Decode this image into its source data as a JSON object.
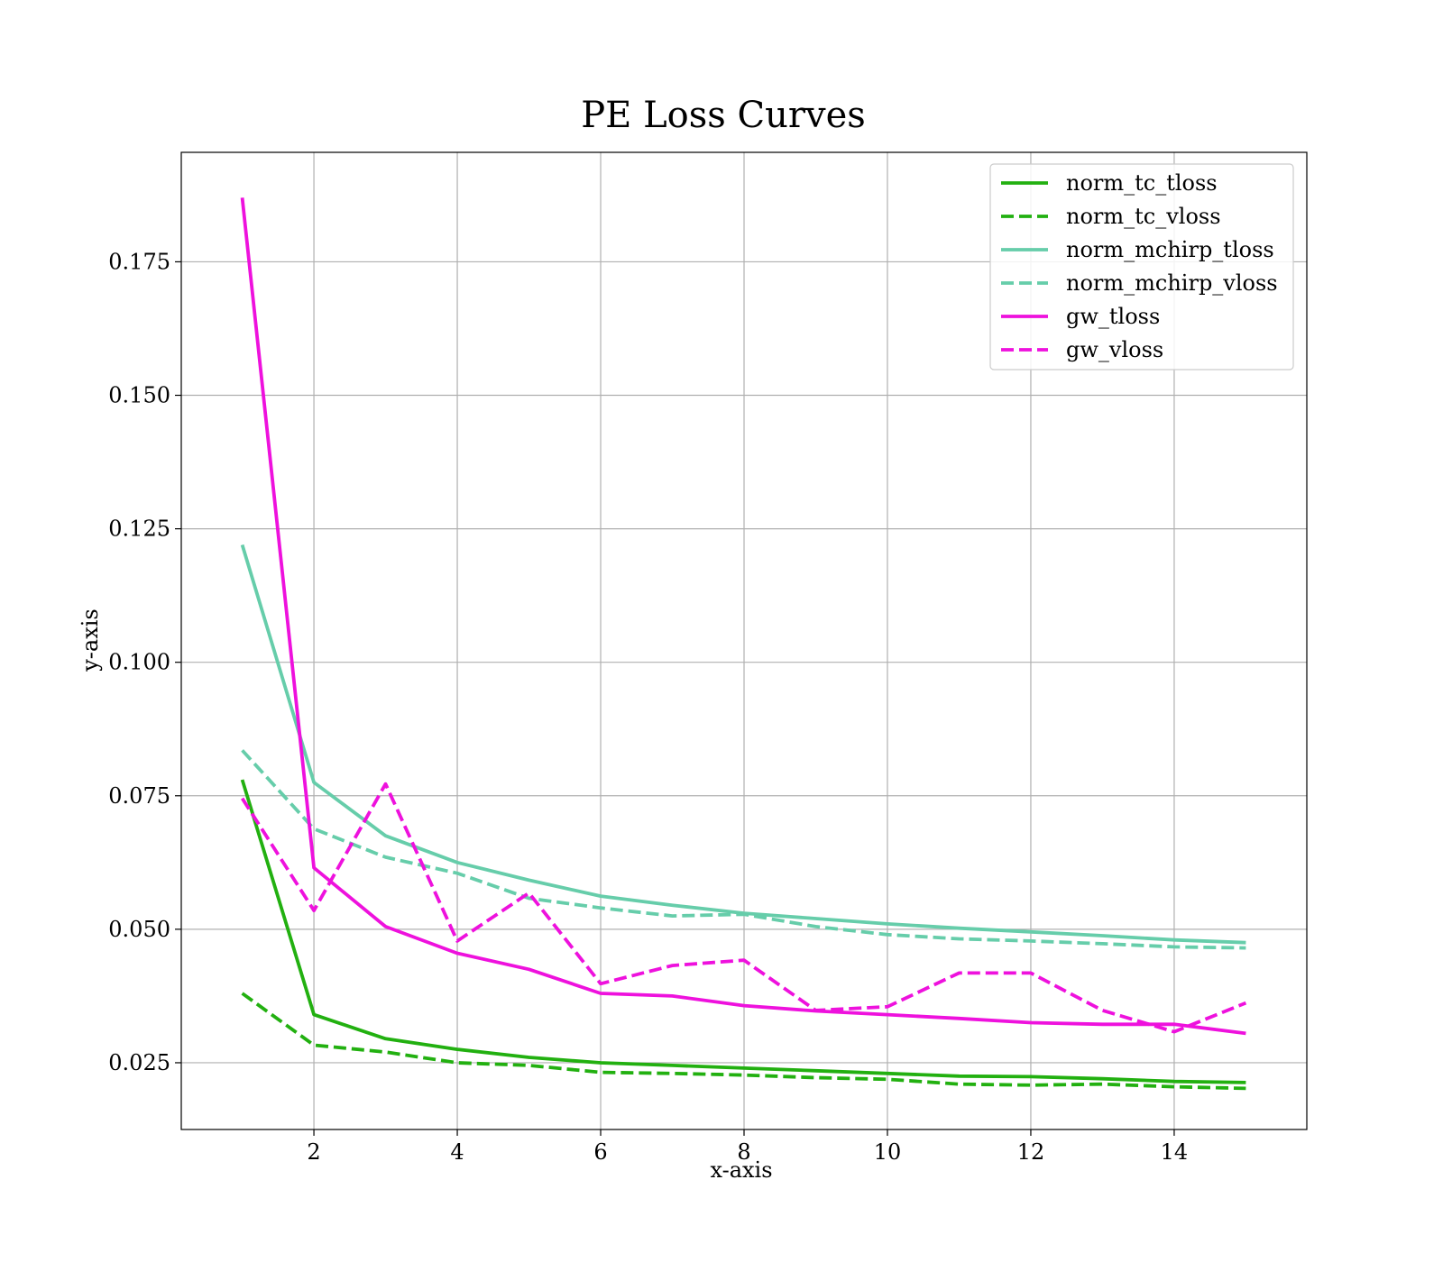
{
  "chart_data": {
    "type": "line",
    "title": "PE Loss Curves",
    "xlabel": "x-axis",
    "ylabel": "y-axis",
    "xlim": [
      0.15,
      15.85
    ],
    "ylim": [
      0.0125,
      0.1955
    ],
    "xticks": [
      2,
      4,
      6,
      8,
      10,
      12,
      14
    ],
    "yticks": [
      0.025,
      0.05,
      0.075,
      0.1,
      0.125,
      0.15,
      0.175
    ],
    "ytick_labels": [
      "0.025",
      "0.050",
      "0.075",
      "0.100",
      "0.125",
      "0.150",
      "0.175"
    ],
    "grid": true,
    "legend_position": "top-right",
    "x": [
      1,
      2,
      3,
      4,
      5,
      6,
      7,
      8,
      9,
      10,
      11,
      12,
      13,
      14,
      15
    ],
    "series": [
      {
        "name": "norm_tc_tloss",
        "color": "#22b010",
        "dashed": false,
        "values": [
          0.078,
          0.034,
          0.0295,
          0.0275,
          0.026,
          0.025,
          0.0245,
          0.024,
          0.0235,
          0.023,
          0.0225,
          0.0224,
          0.022,
          0.0215,
          0.0213
        ]
      },
      {
        "name": "norm_tc_vloss",
        "color": "#22b010",
        "dashed": true,
        "values": [
          0.038,
          0.0283,
          0.027,
          0.025,
          0.0245,
          0.0232,
          0.023,
          0.0227,
          0.0222,
          0.0219,
          0.021,
          0.0208,
          0.021,
          0.0205,
          0.0202
        ]
      },
      {
        "name": "norm_mchirp_tloss",
        "color": "#66cdaa",
        "dashed": false,
        "values": [
          0.122,
          0.0775,
          0.0675,
          0.0625,
          0.0592,
          0.0562,
          0.0545,
          0.053,
          0.052,
          0.051,
          0.0502,
          0.0495,
          0.0488,
          0.048,
          0.0475
        ]
      },
      {
        "name": "norm_mchirp_vloss",
        "color": "#66cdaa",
        "dashed": true,
        "values": [
          0.0835,
          0.0688,
          0.0635,
          0.0605,
          0.0558,
          0.054,
          0.0525,
          0.0528,
          0.0505,
          0.049,
          0.0482,
          0.0478,
          0.0473,
          0.0467,
          0.0465
        ]
      },
      {
        "name": "gw_tloss",
        "color": "#ee11dd",
        "dashed": false,
        "values": [
          0.187,
          0.0615,
          0.0505,
          0.0455,
          0.0425,
          0.038,
          0.0375,
          0.0357,
          0.0347,
          0.034,
          0.0333,
          0.0325,
          0.0322,
          0.0322,
          0.0305
        ]
      },
      {
        "name": "gw_vloss",
        "color": "#ee11dd",
        "dashed": true,
        "values": [
          0.0745,
          0.0535,
          0.0772,
          0.0478,
          0.0568,
          0.0398,
          0.0432,
          0.0442,
          0.0348,
          0.0355,
          0.0418,
          0.0418,
          0.0348,
          0.0308,
          0.0362
        ]
      }
    ]
  }
}
